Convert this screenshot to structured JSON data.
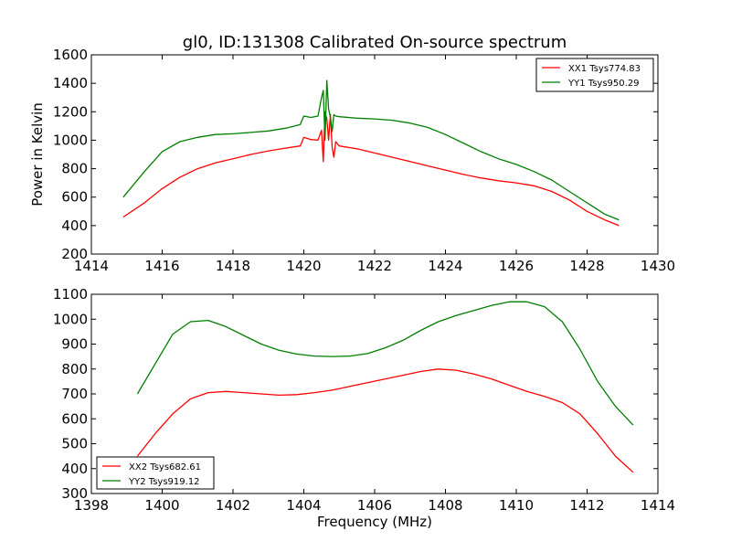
{
  "figure": {
    "title": "gl0, ID:131308 Calibrated On-source spectrum"
  },
  "colors": {
    "red_series": "#ff0000",
    "green_series": "#007f00"
  },
  "chart_data": [
    {
      "type": "line",
      "title": "gl0, ID:131308 Calibrated On-source spectrum",
      "xlabel": "",
      "ylabel": "Power in Kelvin",
      "xlim": [
        1414,
        1430
      ],
      "ylim": [
        200,
        1600
      ],
      "xticks": [
        1414,
        1416,
        1418,
        1420,
        1422,
        1424,
        1426,
        1428,
        1430
      ],
      "yticks": [
        200,
        400,
        600,
        800,
        1000,
        1200,
        1400,
        1600
      ],
      "grid": false,
      "legend_position": "top-right",
      "series": [
        {
          "name": "XX1 Tsys774.83",
          "color": "#ff0000",
          "x": [
            1414.9,
            1415.5,
            1416.0,
            1416.5,
            1417.0,
            1417.5,
            1418.0,
            1418.5,
            1419.0,
            1419.5,
            1419.9,
            1420.0,
            1420.2,
            1420.4,
            1420.5,
            1420.55,
            1420.6,
            1420.65,
            1420.7,
            1420.75,
            1420.8,
            1420.85,
            1420.9,
            1421.0,
            1421.5,
            1422.0,
            1422.5,
            1423.0,
            1423.5,
            1424.0,
            1424.5,
            1425.0,
            1425.5,
            1426.0,
            1426.5,
            1427.0,
            1427.5,
            1428.0,
            1428.5,
            1428.9
          ],
          "y": [
            460,
            560,
            660,
            740,
            800,
            840,
            870,
            900,
            925,
            945,
            960,
            1020,
            1005,
            1000,
            1070,
            850,
            1200,
            1150,
            1000,
            1180,
            950,
            880,
            990,
            960,
            940,
            910,
            880,
            850,
            820,
            790,
            760,
            735,
            715,
            700,
            680,
            640,
            580,
            500,
            440,
            400
          ]
        },
        {
          "name": "YY1 Tsys950.29",
          "color": "#007f00",
          "x": [
            1414.9,
            1415.5,
            1416.0,
            1416.5,
            1417.0,
            1417.5,
            1418.0,
            1418.5,
            1419.0,
            1419.5,
            1419.9,
            1420.0,
            1420.2,
            1420.4,
            1420.5,
            1420.55,
            1420.6,
            1420.65,
            1420.7,
            1420.75,
            1420.8,
            1420.85,
            1420.9,
            1421.0,
            1421.5,
            1422.0,
            1422.5,
            1423.0,
            1423.5,
            1424.0,
            1424.5,
            1425.0,
            1425.5,
            1426.0,
            1426.5,
            1427.0,
            1427.5,
            1428.0,
            1428.5,
            1428.9
          ],
          "y": [
            600,
            780,
            920,
            990,
            1020,
            1040,
            1045,
            1055,
            1065,
            1085,
            1110,
            1170,
            1160,
            1170,
            1300,
            1350,
            1000,
            1420,
            1220,
            1160,
            1060,
            1180,
            1170,
            1165,
            1155,
            1150,
            1140,
            1120,
            1090,
            1040,
            980,
            920,
            870,
            830,
            780,
            720,
            640,
            560,
            480,
            440
          ]
        }
      ]
    },
    {
      "type": "line",
      "title": "",
      "xlabel": "Frequency (MHz)",
      "ylabel": "",
      "xlim": [
        1398,
        1414
      ],
      "ylim": [
        300,
        1100
      ],
      "xticks": [
        1398,
        1400,
        1402,
        1404,
        1406,
        1408,
        1410,
        1412,
        1414
      ],
      "yticks": [
        300,
        400,
        500,
        600,
        700,
        800,
        900,
        1000,
        1100
      ],
      "grid": false,
      "legend_position": "bottom-left",
      "series": [
        {
          "name": "XX2 Tsys682.61",
          "color": "#ff0000",
          "x": [
            1399.3,
            1399.8,
            1400.3,
            1400.8,
            1401.3,
            1401.8,
            1402.3,
            1402.8,
            1403.3,
            1403.8,
            1404.3,
            1404.8,
            1405.3,
            1405.8,
            1406.3,
            1406.8,
            1407.3,
            1407.8,
            1408.3,
            1408.8,
            1409.3,
            1409.8,
            1410.3,
            1410.8,
            1411.3,
            1411.8,
            1412.3,
            1412.8,
            1413.3
          ],
          "y": [
            450,
            540,
            620,
            680,
            705,
            710,
            705,
            700,
            695,
            697,
            705,
            715,
            730,
            745,
            760,
            775,
            790,
            800,
            795,
            780,
            760,
            735,
            710,
            690,
            665,
            620,
            540,
            450,
            385
          ]
        },
        {
          "name": "YY2 Tsys919.12",
          "color": "#007f00",
          "x": [
            1399.3,
            1399.8,
            1400.3,
            1400.8,
            1401.3,
            1401.8,
            1402.3,
            1402.8,
            1403.3,
            1403.8,
            1404.3,
            1404.8,
            1405.3,
            1405.8,
            1406.3,
            1406.8,
            1407.3,
            1407.8,
            1408.3,
            1408.8,
            1409.3,
            1409.8,
            1410.3,
            1410.8,
            1411.3,
            1411.8,
            1412.3,
            1412.8,
            1413.3
          ],
          "y": [
            700,
            820,
            940,
            990,
            995,
            970,
            935,
            900,
            875,
            860,
            852,
            850,
            852,
            862,
            885,
            915,
            955,
            990,
            1015,
            1035,
            1055,
            1070,
            1070,
            1050,
            990,
            880,
            750,
            650,
            575
          ]
        }
      ]
    }
  ]
}
